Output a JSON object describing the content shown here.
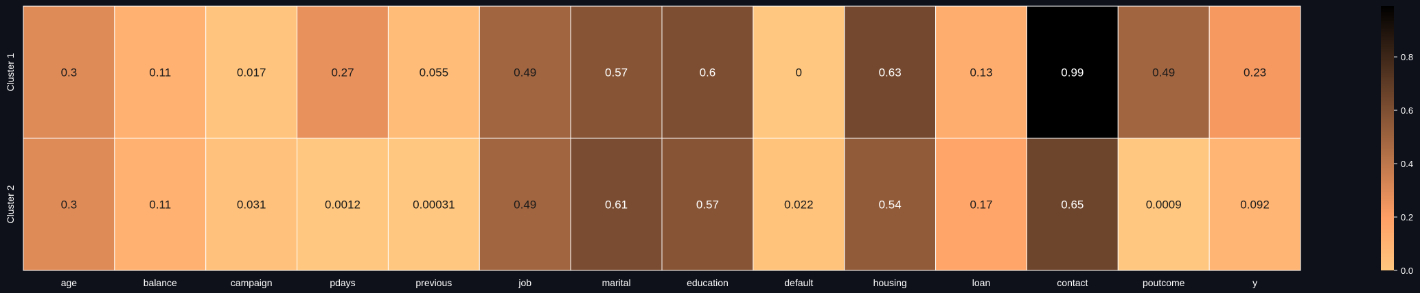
{
  "chart_data": {
    "type": "heatmap",
    "rows": [
      "Cluster 1",
      "Cluster 2"
    ],
    "columns": [
      "age",
      "balance",
      "campaign",
      "pdays",
      "previous",
      "job",
      "marital",
      "education",
      "default",
      "housing",
      "loan",
      "contact",
      "poutcome",
      "y"
    ],
    "values": [
      [
        0.3,
        0.11,
        0.017,
        0.27,
        0.055,
        0.49,
        0.57,
        0.6,
        0,
        0.63,
        0.13,
        0.99,
        0.49,
        0.23
      ],
      [
        0.3,
        0.11,
        0.031,
        0.0012,
        0.00031,
        0.49,
        0.61,
        0.57,
        0.022,
        0.54,
        0.17,
        0.65,
        0.0009,
        0.092
      ]
    ],
    "labels": [
      [
        "0.3",
        "0.11",
        "0.017",
        "0.27",
        "0.055",
        "0.49",
        "0.57",
        "0.6",
        "0",
        "0.63",
        "0.13",
        "0.99",
        "0.49",
        "0.23"
      ],
      [
        "0.3",
        "0.11",
        "0.031",
        "0.0012",
        "0.00031",
        "0.49",
        "0.61",
        "0.57",
        "0.022",
        "0.54",
        "0.17",
        "0.65",
        "0.0009",
        "0.092"
      ]
    ],
    "colormap": "copper_r",
    "vmin": 0,
    "vmax": 0.99,
    "colorbar_ticks": [
      "0.0",
      "0.2",
      "0.4",
      "0.6",
      "0.8"
    ],
    "colorbar_tick_values": [
      0,
      0.2,
      0.4,
      0.6,
      0.8
    ],
    "colors": {
      "background": "#0e111a",
      "text": "#ffffff",
      "cell_border": "#ffffff"
    }
  }
}
